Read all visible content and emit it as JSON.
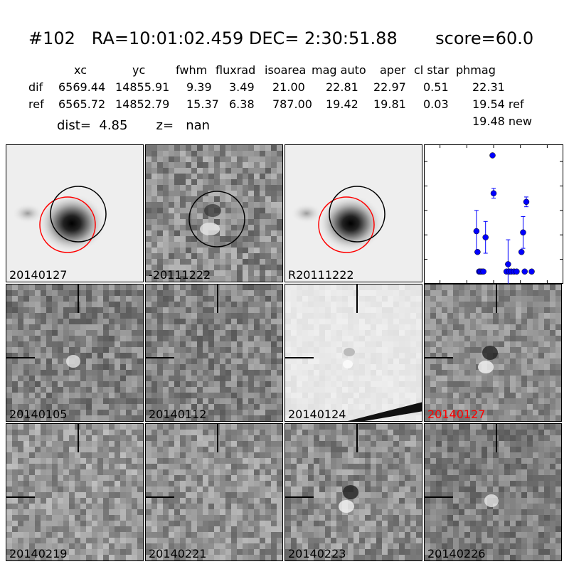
{
  "title": "#102   RA=10:01:02.459 DEC= 2:30:51.88       score=60.0",
  "table": {
    "headers": [
      "xc",
      "yc",
      "fwhm",
      "fluxrad",
      "isoarea",
      "mag auto",
      "aper",
      "cl star",
      "phmag"
    ],
    "rows": [
      {
        "label": "dif",
        "values": [
          "6569.44",
          "14855.91",
          "9.39",
          "3.49",
          "21.00",
          "22.81",
          "22.97",
          "0.51",
          "22.31"
        ]
      },
      {
        "label": "ref",
        "values": [
          "6565.72",
          "14852.79",
          "15.37",
          "6.38",
          "787.00",
          "19.42",
          "19.81",
          "0.03",
          "19.54 ref"
        ]
      }
    ],
    "extra": "19.48 new"
  },
  "dist_line": "dist=  4.85       z=   nan",
  "top_panels": [
    {
      "label": "20140127",
      "red": false
    },
    {
      "label": "-20111222",
      "red": false
    },
    {
      "label": "R20111222",
      "red": false
    }
  ],
  "stamps": [
    {
      "label": "20140105",
      "red": false
    },
    {
      "label": "20140112",
      "red": false
    },
    {
      "label": "20140124",
      "red": false
    },
    {
      "label": "20140127",
      "red": true
    },
    {
      "label": "20140219",
      "red": false
    },
    {
      "label": "20140221",
      "red": false
    },
    {
      "label": "20140223",
      "red": false
    },
    {
      "label": "20140226",
      "red": false
    }
  ],
  "chart_data": {
    "type": "scatter",
    "title": "",
    "xlabel": "",
    "ylabel": "",
    "xlim": [
      -130,
      130
    ],
    "ylim": [
      26,
      20.3
    ],
    "xticks": [
      -100,
      -50,
      0,
      50,
      100
    ],
    "yticks": [
      21,
      22,
      23,
      24,
      25,
      26
    ],
    "color": "#0000ff",
    "points": [
      {
        "x": -32,
        "y": 23.85,
        "err": 0.85
      },
      {
        "x": -30,
        "y": 24.7,
        "err": 0
      },
      {
        "x": -27,
        "y": 25.5,
        "err": 0
      },
      {
        "x": -25,
        "y": 25.5,
        "err": 0
      },
      {
        "x": -22,
        "y": 25.5,
        "err": 0
      },
      {
        "x": -19,
        "y": 25.5,
        "err": 0
      },
      {
        "x": -15,
        "y": 24.1,
        "err": 0.65
      },
      {
        "x": -2,
        "y": 20.75,
        "err": 0
      },
      {
        "x": 0,
        "y": 22.3,
        "err": 0.2
      },
      {
        "x": 24,
        "y": 25.5,
        "err": 0
      },
      {
        "x": 27,
        "y": 25.2,
        "err": 1.0
      },
      {
        "x": 29,
        "y": 25.5,
        "err": 0
      },
      {
        "x": 33,
        "y": 25.5,
        "err": 0
      },
      {
        "x": 38,
        "y": 25.5,
        "err": 0
      },
      {
        "x": 43,
        "y": 25.5,
        "err": 0
      },
      {
        "x": 52,
        "y": 24.7,
        "err": 0
      },
      {
        "x": 55,
        "y": 23.9,
        "err": 0.65
      },
      {
        "x": 58,
        "y": 25.5,
        "err": 0
      },
      {
        "x": 61,
        "y": 22.65,
        "err": 0.2
      },
      {
        "x": 71,
        "y": 25.5,
        "err": 0
      }
    ]
  }
}
